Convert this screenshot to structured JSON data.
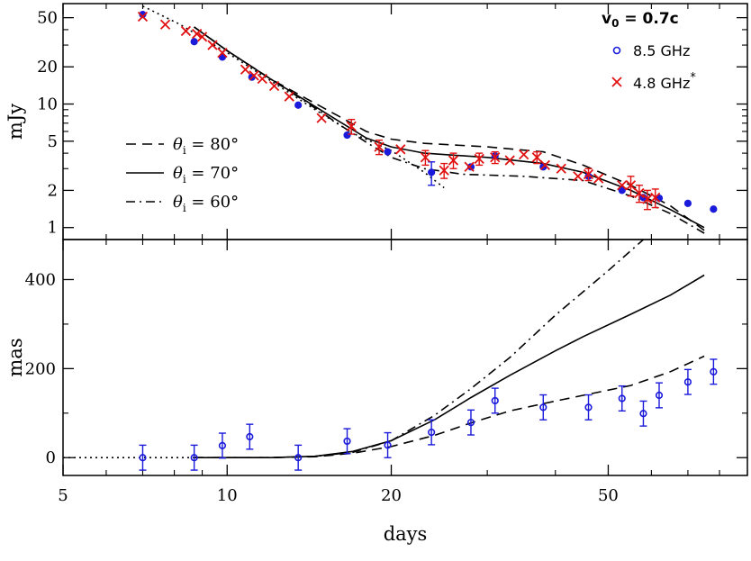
{
  "chart_data": [
    {
      "type": "scatter",
      "panel": "top",
      "ylabel": "mJy",
      "yscale": "log",
      "xscale": "log",
      "xlim": [
        5,
        90
      ],
      "ylim": [
        0.8,
        65
      ],
      "yticks": [
        1,
        2,
        5,
        10,
        20,
        50
      ],
      "yticklabels": [
        "1",
        "2",
        "5",
        "10",
        "20",
        "50"
      ],
      "annotation": {
        "lead": "v",
        "sub": "0",
        "tail": " = 0.7c"
      },
      "legend_points": [
        {
          "label": "8.5 GHz",
          "marker": "circle",
          "color": "#1a1adb",
          "sup": ""
        },
        {
          "label": "4.8 GHz",
          "marker": "x",
          "color": "#e11111",
          "sup": "*"
        }
      ],
      "legend_lines": [
        {
          "lead": "θ",
          "sub": "i",
          "tail": " = 80°",
          "dash": "dashed"
        },
        {
          "lead": "θ",
          "sub": "i",
          "tail": " = 70°",
          "dash": "solid"
        },
        {
          "lead": "θ",
          "sub": "i",
          "tail": " = 60°",
          "dash": "dashdot"
        }
      ],
      "series": [
        {
          "name": "8.5 GHz",
          "marker": "circle",
          "color": "#1a1adb",
          "points": [
            [
              7.0,
              53,
              null
            ],
            [
              8.7,
              32,
              null
            ],
            [
              9.8,
              24,
              null
            ],
            [
              11.1,
              16.5,
              null
            ],
            [
              13.5,
              9.8,
              null
            ],
            [
              16.6,
              5.6,
              null
            ],
            [
              19.7,
              4.1,
              null
            ],
            [
              23.7,
              2.8,
              0.6
            ],
            [
              28.0,
              3.1,
              null
            ],
            [
              31.0,
              3.8,
              null
            ],
            [
              38.0,
              3.1,
              null
            ],
            [
              46.0,
              2.6,
              null
            ],
            [
              53.0,
              2.0,
              null
            ],
            [
              58.0,
              1.75,
              null
            ],
            [
              62.0,
              1.73,
              null
            ],
            [
              70.0,
              1.57,
              null
            ],
            [
              78.0,
              1.41,
              null
            ]
          ]
        },
        {
          "name": "4.8 GHz",
          "marker": "x",
          "color": "#e11111",
          "points": [
            [
              7.0,
              51,
              null
            ],
            [
              7.7,
              44,
              null
            ],
            [
              8.4,
              39,
              null
            ],
            [
              8.8,
              37,
              null
            ],
            [
              9.0,
              35,
              null
            ],
            [
              9.4,
              30,
              null
            ],
            [
              9.8,
              26,
              null
            ],
            [
              10.8,
              19,
              null
            ],
            [
              11.2,
              17,
              null
            ],
            [
              11.6,
              16,
              null
            ],
            [
              12.2,
              14,
              null
            ],
            [
              13.0,
              11.5,
              null
            ],
            [
              14.9,
              7.7,
              null
            ],
            [
              16.9,
              6.6,
              0.9
            ],
            [
              19.0,
              4.5,
              0.6
            ],
            [
              20.8,
              4.3,
              null
            ],
            [
              23.1,
              3.7,
              0.5
            ],
            [
              25.0,
              2.9,
              0.4
            ],
            [
              26.0,
              3.5,
              0.5
            ],
            [
              27.8,
              3.1,
              null
            ],
            [
              29.0,
              3.6,
              0.4
            ],
            [
              31.0,
              3.7,
              0.4
            ],
            [
              33.0,
              3.5,
              null
            ],
            [
              35.0,
              3.9,
              null
            ],
            [
              37.0,
              3.7,
              0.4
            ],
            [
              38.3,
              3.2,
              null
            ],
            [
              41.0,
              3.0,
              null
            ],
            [
              44.0,
              2.6,
              null
            ],
            [
              46.0,
              2.7,
              0.3
            ],
            [
              48.0,
              2.5,
              null
            ],
            [
              53.0,
              2.2,
              null
            ],
            [
              55.0,
              2.2,
              0.4
            ],
            [
              57.0,
              1.9,
              0.3
            ],
            [
              59.0,
              1.7,
              0.3
            ],
            [
              61.0,
              1.75,
              0.3
            ]
          ]
        }
      ],
      "model_curves": [
        {
          "style": "dotted",
          "points": [
            [
              7.0,
              62
            ],
            [
              8.2,
              44
            ],
            [
              10.0,
              26
            ],
            [
              12.0,
              15.5
            ],
            [
              14.5,
              9
            ],
            [
              17.0,
              5.8
            ],
            [
              20.0,
              4.2
            ],
            [
              23.0,
              2.8
            ],
            [
              25.0,
              2.1
            ]
          ]
        },
        {
          "style": "dashed",
          "points": [
            [
              8.7,
              42
            ],
            [
              10.0,
              27
            ],
            [
              12.0,
              16
            ],
            [
              14.0,
              11
            ],
            [
              16.0,
              8
            ],
            [
              18.0,
              6
            ],
            [
              20.0,
              5.2
            ],
            [
              23.0,
              4.8
            ],
            [
              30.0,
              4.5
            ],
            [
              38.0,
              4.1
            ],
            [
              45.0,
              3.2
            ],
            [
              55.0,
              2.2
            ],
            [
              65.0,
              1.5
            ],
            [
              75.0,
              0.95
            ]
          ]
        },
        {
          "style": "solid",
          "points": [
            [
              8.7,
              42
            ],
            [
              10.0,
              27
            ],
            [
              12.0,
              16
            ],
            [
              14.0,
              10.5
            ],
            [
              16.0,
              7.3
            ],
            [
              18.0,
              5.3
            ],
            [
              20.0,
              4.5
            ],
            [
              23.0,
              4.0
            ],
            [
              30.0,
              3.7
            ],
            [
              38.0,
              3.3
            ],
            [
              45.0,
              2.8
            ],
            [
              55.0,
              2.0
            ],
            [
              65.0,
              1.4
            ],
            [
              75.0,
              1.0
            ]
          ]
        },
        {
          "style": "dashdot",
          "points": [
            [
              8.7,
              42
            ],
            [
              10.0,
              27
            ],
            [
              12.0,
              16
            ],
            [
              14.0,
              10.3
            ],
            [
              16.0,
              6.9
            ],
            [
              18.0,
              4.9
            ],
            [
              20.0,
              3.7
            ],
            [
              23.0,
              3.0
            ],
            [
              27.0,
              2.7
            ],
            [
              35.0,
              2.6
            ],
            [
              45.0,
              2.4
            ],
            [
              55.0,
              1.8
            ],
            [
              65.0,
              1.3
            ],
            [
              75.0,
              0.9
            ]
          ]
        }
      ]
    },
    {
      "type": "scatter",
      "panel": "bottom",
      "ylabel": "mas",
      "xlabel": "days",
      "xscale": "log",
      "xlim": [
        5,
        90
      ],
      "ylim": [
        -40,
        490
      ],
      "xticks": [
        5,
        10,
        20,
        50
      ],
      "xticklabels": [
        "5",
        "10",
        "20",
        "50"
      ],
      "yticks": [
        0,
        200,
        400
      ],
      "yticklabels": [
        "0",
        "200",
        "400"
      ],
      "series": [
        {
          "name": "8.5 GHz",
          "marker": "circle",
          "color": "#1a1adb",
          "points": [
            [
              7.0,
              0,
              28
            ],
            [
              8.7,
              0,
              28
            ],
            [
              9.8,
              27,
              28
            ],
            [
              11.0,
              47,
              28
            ],
            [
              13.5,
              0,
              28
            ],
            [
              16.6,
              37,
              28
            ],
            [
              19.7,
              28,
              28
            ],
            [
              23.7,
              57,
              28
            ],
            [
              28.0,
              79,
              28
            ],
            [
              31.0,
              128,
              28
            ],
            [
              38.0,
              113,
              28
            ],
            [
              46.0,
              113,
              28
            ],
            [
              53.0,
              133,
              28
            ],
            [
              58.0,
              99,
              28
            ],
            [
              62.0,
              140,
              28
            ],
            [
              70.0,
              170,
              28
            ],
            [
              78.0,
              193,
              28
            ]
          ]
        }
      ],
      "model_curves": [
        {
          "style": "dotted",
          "points": [
            [
              5.0,
              0
            ],
            [
              8.7,
              0
            ]
          ]
        },
        {
          "style": "dashdot",
          "points": [
            [
              8.7,
              0
            ],
            [
              12.0,
              0
            ],
            [
              14.5,
              3
            ],
            [
              17.0,
              12
            ],
            [
              20.0,
              38
            ],
            [
              24.0,
              95
            ],
            [
              28.0,
              155
            ],
            [
              33.0,
              225
            ],
            [
              40.0,
              320
            ],
            [
              50.0,
              420
            ],
            [
              58.0,
              490
            ]
          ]
        },
        {
          "style": "solid",
          "points": [
            [
              8.7,
              0
            ],
            [
              12.0,
              0
            ],
            [
              14.5,
              3
            ],
            [
              17.0,
              14
            ],
            [
              20.0,
              38
            ],
            [
              24.0,
              85
            ],
            [
              28.0,
              135
            ],
            [
              33.0,
              185
            ],
            [
              40.0,
              240
            ],
            [
              45.0,
              272
            ],
            [
              55.0,
              322
            ],
            [
              65.0,
              365
            ],
            [
              75.0,
              410
            ]
          ]
        },
        {
          "style": "dashed",
          "points": [
            [
              8.7,
              0
            ],
            [
              12.0,
              0
            ],
            [
              14.5,
              2
            ],
            [
              17.0,
              10
            ],
            [
              20.0,
              25
            ],
            [
              24.0,
              50
            ],
            [
              28.0,
              78
            ],
            [
              33.0,
              105
            ],
            [
              40.0,
              127
            ],
            [
              45.0,
              140
            ],
            [
              55.0,
              162
            ],
            [
              65.0,
              193
            ],
            [
              75.0,
              228
            ]
          ]
        }
      ]
    }
  ]
}
